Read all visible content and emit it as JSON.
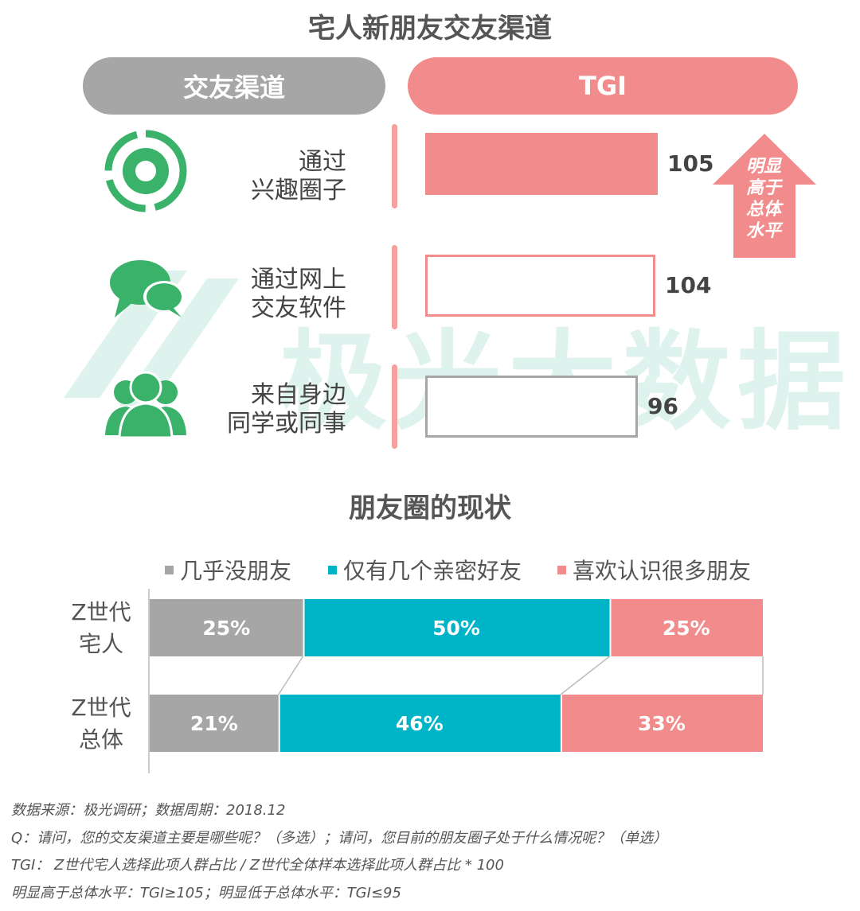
{
  "section1": {
    "title": "宅人新朋友交友渠道",
    "header_left": "交友渠道",
    "header_right": "TGI",
    "watermark": "极光大数据",
    "arrow_text": [
      "明显",
      "高于",
      "总体",
      "水平"
    ]
  },
  "section2": {
    "title": "朋友圈的现状"
  },
  "colors": {
    "gray": "#a6a6a6",
    "teal": "#00b4c8",
    "pink": "#f28b8b",
    "green": "#3ab26a",
    "border_gray": "#a6a6a6"
  },
  "icons": [
    "target-circle-icon",
    "chat-bubbles-icon",
    "group-people-icon"
  ],
  "chart_data": [
    {
      "type": "bar",
      "orientation": "horizontal",
      "categories": [
        [
          "通过",
          "兴趣圈子"
        ],
        [
          "通过网上",
          "交友软件"
        ],
        [
          "来自身边",
          "同学或同事"
        ]
      ],
      "values": [
        105,
        104,
        96
      ],
      "styles": [
        "filled-pink",
        "outline-pink",
        "outline-gray"
      ]
    },
    {
      "type": "bar",
      "orientation": "horizontal",
      "stacked": "percent",
      "legend": [
        "几乎没朋友",
        "仅有几个亲密好友",
        "喜欢认识很多朋友"
      ],
      "legend_position": "top",
      "categories": [
        [
          "Z世代",
          "宅人"
        ],
        [
          "Z世代",
          "总体"
        ]
      ],
      "series": [
        {
          "name": "几乎没朋友",
          "values": [
            25,
            21
          ],
          "labels": [
            "25%",
            "21%"
          ]
        },
        {
          "name": "仅有几个亲密好友",
          "values": [
            50,
            46
          ],
          "labels": [
            "50%",
            "46%"
          ]
        },
        {
          "name": "喜欢认识很多朋友",
          "values": [
            25,
            33
          ],
          "labels": [
            "25%",
            "33%"
          ]
        }
      ]
    }
  ],
  "notes": [
    "数据来源：极光调研；数据周期：2018.12",
    "Q：请问，您的交友渠道主要是哪些呢？（多选）；请问，您目前的朋友圈子处于什么情况呢？（单选）",
    "TGI： Z世代宅人选择此项人群占比 / Z世代全体样本选择此项人群占比 * 100",
    "明显高于总体水平：TGI≥105；明显低于总体水平：TGI≤95"
  ]
}
